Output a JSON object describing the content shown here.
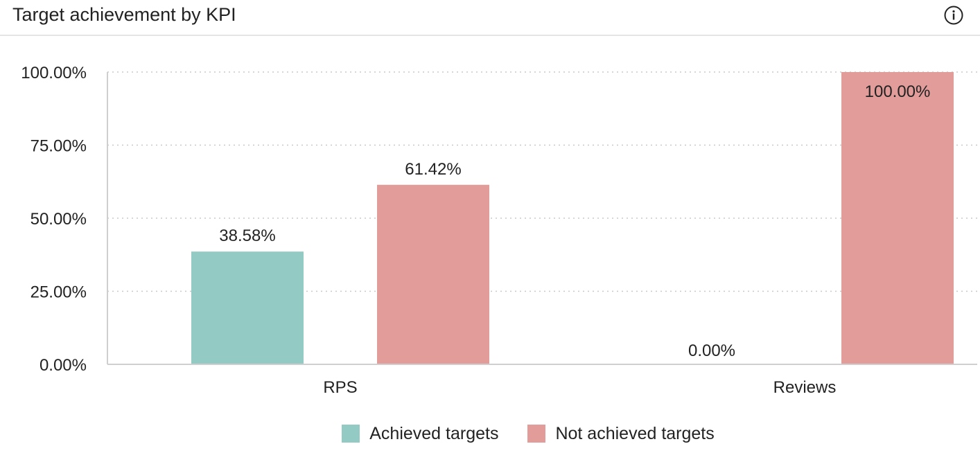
{
  "header": {
    "title": "Target achievement by KPI",
    "info_icon": "info-icon"
  },
  "chart_data": {
    "type": "bar",
    "categories": [
      "RPS",
      "Reviews"
    ],
    "series": [
      {
        "name": "Achieved targets",
        "color": "#93cac4",
        "values": [
          38.58,
          0.0
        ],
        "labels": [
          "38.58%",
          "0.00%"
        ]
      },
      {
        "name": "Not achieved targets",
        "color": "#e29c9a",
        "values": [
          61.42,
          100.0
        ],
        "labels": [
          "61.42%",
          "100.00%"
        ]
      }
    ],
    "ylim": [
      0,
      100
    ],
    "yticks": [
      0,
      25,
      50,
      75,
      100
    ],
    "ytick_labels": [
      "0.00%",
      "25.00%",
      "50.00%",
      "75.00%",
      "100.00%"
    ],
    "grid": true,
    "legend_position": "bottom-center"
  }
}
